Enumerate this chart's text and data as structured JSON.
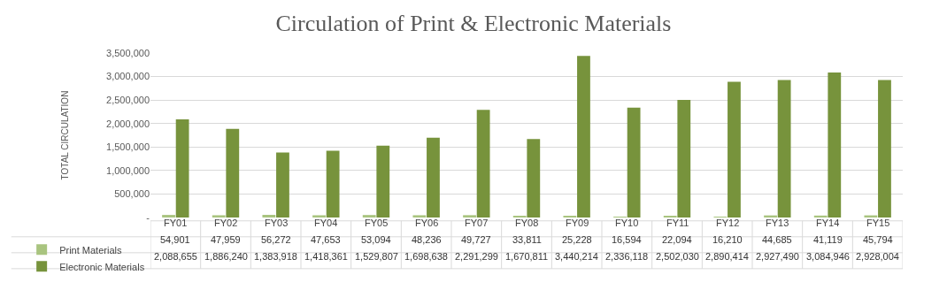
{
  "chart_data": {
    "type": "bar",
    "title": "Circulation of Print & Electronic Materials",
    "ylabel": "TOTAL CIRCULATION",
    "categories": [
      "FY01",
      "FY02",
      "FY03",
      "FY04",
      "FY05",
      "FY06",
      "FY07",
      "FY08",
      "FY09",
      "FY10",
      "FY11",
      "FY12",
      "FY13",
      "FY14",
      "FY15"
    ],
    "series": [
      {
        "name": "Print Materials",
        "color": "#a9c47f",
        "values": [
          54901,
          47959,
          56272,
          47653,
          53094,
          48236,
          49727,
          33811,
          25228,
          16594,
          22094,
          16210,
          44685,
          41119,
          45794
        ],
        "value_labels": [
          "54,901",
          "47,959",
          "56,272",
          "47,653",
          "53,094",
          "48,236",
          "49,727",
          "33,811",
          "25,228",
          "16,594",
          "22,094",
          "16,210",
          "44,685",
          "41,119",
          "45,794"
        ]
      },
      {
        "name": "Electronic Materials",
        "color": "#77933c",
        "values": [
          2088655,
          1886240,
          1383918,
          1418361,
          1529807,
          1698638,
          2291299,
          1670811,
          3440214,
          2336118,
          2502030,
          2890414,
          2927490,
          3084946,
          2928004
        ],
        "value_labels": [
          "2,088,655",
          "1,886,240",
          "1,383,918",
          "1,418,361",
          "1,529,807",
          "1,698,638",
          "2,291,299",
          "1,670,811",
          "3,440,214",
          "2,336,118",
          "2,502,030",
          "2,890,414",
          "2,927,490",
          "3,084,946",
          "2,928,004"
        ]
      }
    ],
    "ylim": [
      0,
      3500000
    ],
    "yticks": [
      {
        "value": 0,
        "label": "-"
      },
      {
        "value": 500000,
        "label": "500,000"
      },
      {
        "value": 1000000,
        "label": "1,000,000"
      },
      {
        "value": 1500000,
        "label": "1,500,000"
      },
      {
        "value": 2000000,
        "label": "2,000,000"
      },
      {
        "value": 2500000,
        "label": "2,500,000"
      },
      {
        "value": 3000000,
        "label": "3,000,000"
      },
      {
        "value": 3500000,
        "label": "3,500,000"
      }
    ],
    "grid": "y",
    "legend": "bottom left"
  }
}
